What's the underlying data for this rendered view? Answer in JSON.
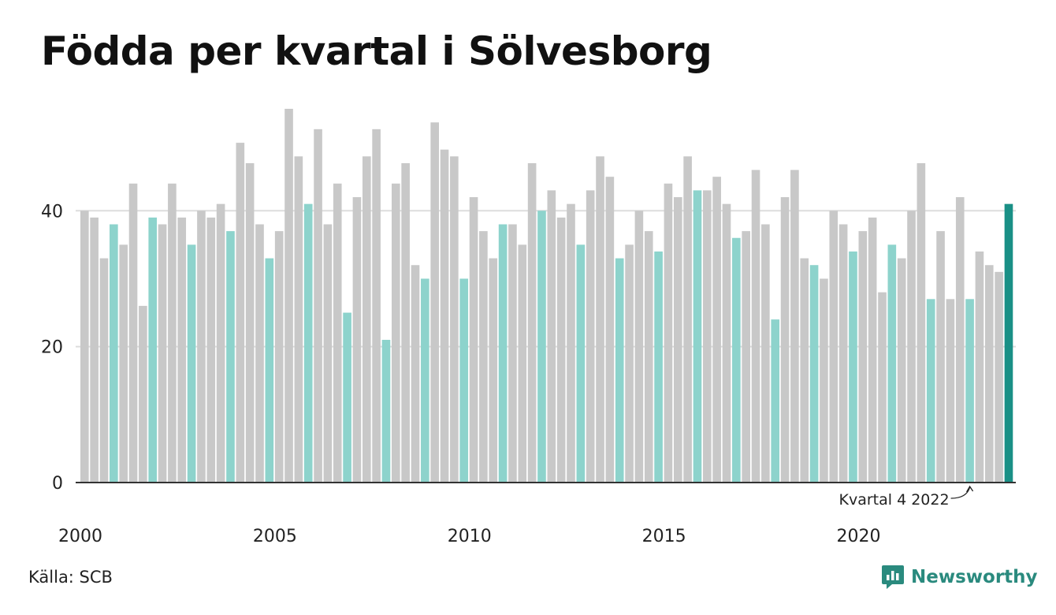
{
  "title": "Födda per kvartal i Sölvesborg",
  "source": "Källa: SCB",
  "brand": {
    "name": "Newsworthy",
    "icon": "newsworthy-logo-icon",
    "color": "#2a8a7e"
  },
  "colors": {
    "default": "#c8c8c8",
    "q4": "#8dd3cc",
    "highlight": "#1a9086",
    "grid": "#dddddd",
    "axis": "#333333"
  },
  "chart_data": {
    "type": "bar",
    "x_tick_labels": [
      "2000",
      "2005",
      "2010",
      "2015",
      "2020"
    ],
    "y_ticks": [
      0,
      20,
      40
    ],
    "ylim": [
      0,
      55
    ],
    "xlim": [
      2000,
      2024
    ],
    "grid": true,
    "annotation": {
      "text": "Kvartal 4 2022",
      "target_index": 91
    },
    "bars": [
      {
        "year": 2000,
        "quarter": 1,
        "value": 40
      },
      {
        "year": 2000,
        "quarter": 2,
        "value": 39
      },
      {
        "year": 2000,
        "quarter": 3,
        "value": 33
      },
      {
        "year": 2000,
        "quarter": 4,
        "value": 38
      },
      {
        "year": 2001,
        "quarter": 1,
        "value": 35
      },
      {
        "year": 2001,
        "quarter": 2,
        "value": 44
      },
      {
        "year": 2001,
        "quarter": 3,
        "value": 26
      },
      {
        "year": 2001,
        "quarter": 4,
        "value": 39
      },
      {
        "year": 2002,
        "quarter": 1,
        "value": 38
      },
      {
        "year": 2002,
        "quarter": 2,
        "value": 44
      },
      {
        "year": 2002,
        "quarter": 3,
        "value": 39
      },
      {
        "year": 2002,
        "quarter": 4,
        "value": 35
      },
      {
        "year": 2003,
        "quarter": 1,
        "value": 40
      },
      {
        "year": 2003,
        "quarter": 2,
        "value": 39
      },
      {
        "year": 2003,
        "quarter": 3,
        "value": 41
      },
      {
        "year": 2003,
        "quarter": 4,
        "value": 37
      },
      {
        "year": 2004,
        "quarter": 1,
        "value": 50
      },
      {
        "year": 2004,
        "quarter": 2,
        "value": 47
      },
      {
        "year": 2004,
        "quarter": 3,
        "value": 38
      },
      {
        "year": 2004,
        "quarter": 4,
        "value": 33
      },
      {
        "year": 2005,
        "quarter": 1,
        "value": 37
      },
      {
        "year": 2005,
        "quarter": 2,
        "value": 55
      },
      {
        "year": 2005,
        "quarter": 3,
        "value": 48
      },
      {
        "year": 2005,
        "quarter": 4,
        "value": 41
      },
      {
        "year": 2006,
        "quarter": 1,
        "value": 52
      },
      {
        "year": 2006,
        "quarter": 2,
        "value": 38
      },
      {
        "year": 2006,
        "quarter": 3,
        "value": 44
      },
      {
        "year": 2006,
        "quarter": 4,
        "value": 25
      },
      {
        "year": 2007,
        "quarter": 1,
        "value": 42
      },
      {
        "year": 2007,
        "quarter": 2,
        "value": 48
      },
      {
        "year": 2007,
        "quarter": 3,
        "value": 52
      },
      {
        "year": 2007,
        "quarter": 4,
        "value": 21
      },
      {
        "year": 2008,
        "quarter": 1,
        "value": 44
      },
      {
        "year": 2008,
        "quarter": 2,
        "value": 47
      },
      {
        "year": 2008,
        "quarter": 3,
        "value": 32
      },
      {
        "year": 2008,
        "quarter": 4,
        "value": 30
      },
      {
        "year": 2009,
        "quarter": 1,
        "value": 53
      },
      {
        "year": 2009,
        "quarter": 2,
        "value": 49
      },
      {
        "year": 2009,
        "quarter": 3,
        "value": 48
      },
      {
        "year": 2009,
        "quarter": 4,
        "value": 30
      },
      {
        "year": 2010,
        "quarter": 1,
        "value": 42
      },
      {
        "year": 2010,
        "quarter": 2,
        "value": 37
      },
      {
        "year": 2010,
        "quarter": 3,
        "value": 33
      },
      {
        "year": 2010,
        "quarter": 4,
        "value": 38
      },
      {
        "year": 2011,
        "quarter": 1,
        "value": 38
      },
      {
        "year": 2011,
        "quarter": 2,
        "value": 35
      },
      {
        "year": 2011,
        "quarter": 3,
        "value": 47
      },
      {
        "year": 2011,
        "quarter": 4,
        "value": 40
      },
      {
        "year": 2012,
        "quarter": 1,
        "value": 43
      },
      {
        "year": 2012,
        "quarter": 2,
        "value": 39
      },
      {
        "year": 2012,
        "quarter": 3,
        "value": 41
      },
      {
        "year": 2012,
        "quarter": 4,
        "value": 35
      },
      {
        "year": 2013,
        "quarter": 1,
        "value": 43
      },
      {
        "year": 2013,
        "quarter": 2,
        "value": 48
      },
      {
        "year": 2013,
        "quarter": 3,
        "value": 45
      },
      {
        "year": 2013,
        "quarter": 4,
        "value": 33
      },
      {
        "year": 2014,
        "quarter": 1,
        "value": 35
      },
      {
        "year": 2014,
        "quarter": 2,
        "value": 40
      },
      {
        "year": 2014,
        "quarter": 3,
        "value": 37
      },
      {
        "year": 2014,
        "quarter": 4,
        "value": 34
      },
      {
        "year": 2015,
        "quarter": 1,
        "value": 44
      },
      {
        "year": 2015,
        "quarter": 2,
        "value": 42
      },
      {
        "year": 2015,
        "quarter": 3,
        "value": 48
      },
      {
        "year": 2015,
        "quarter": 4,
        "value": 43
      },
      {
        "year": 2016,
        "quarter": 1,
        "value": 43
      },
      {
        "year": 2016,
        "quarter": 2,
        "value": 45
      },
      {
        "year": 2016,
        "quarter": 3,
        "value": 41
      },
      {
        "year": 2016,
        "quarter": 4,
        "value": 36
      },
      {
        "year": 2017,
        "quarter": 1,
        "value": 37
      },
      {
        "year": 2017,
        "quarter": 2,
        "value": 46
      },
      {
        "year": 2017,
        "quarter": 3,
        "value": 38
      },
      {
        "year": 2017,
        "quarter": 4,
        "value": 24
      },
      {
        "year": 2018,
        "quarter": 1,
        "value": 42
      },
      {
        "year": 2018,
        "quarter": 2,
        "value": 46
      },
      {
        "year": 2018,
        "quarter": 3,
        "value": 33
      },
      {
        "year": 2018,
        "quarter": 4,
        "value": 32
      },
      {
        "year": 2019,
        "quarter": 1,
        "value": 30
      },
      {
        "year": 2019,
        "quarter": 2,
        "value": 40
      },
      {
        "year": 2019,
        "quarter": 3,
        "value": 38
      },
      {
        "year": 2019,
        "quarter": 4,
        "value": 34
      },
      {
        "year": 2020,
        "quarter": 1,
        "value": 37
      },
      {
        "year": 2020,
        "quarter": 2,
        "value": 39
      },
      {
        "year": 2020,
        "quarter": 3,
        "value": 28
      },
      {
        "year": 2020,
        "quarter": 4,
        "value": 35
      },
      {
        "year": 2021,
        "quarter": 1,
        "value": 33
      },
      {
        "year": 2021,
        "quarter": 2,
        "value": 40
      },
      {
        "year": 2021,
        "quarter": 3,
        "value": 47
      },
      {
        "year": 2021,
        "quarter": 4,
        "value": 27
      },
      {
        "year": 2022,
        "quarter": 1,
        "value": 37
      },
      {
        "year": 2022,
        "quarter": 2,
        "value": 27
      },
      {
        "year": 2022,
        "quarter": 3,
        "value": 42
      },
      {
        "year": 2022,
        "quarter": 4,
        "value": 27
      },
      {
        "year": 2023,
        "quarter": 1,
        "value": 34
      },
      {
        "year": 2023,
        "quarter": 2,
        "value": 32
      },
      {
        "year": 2023,
        "quarter": 3,
        "value": 31
      },
      {
        "year": 2023,
        "quarter": 4,
        "value": 41
      }
    ]
  }
}
